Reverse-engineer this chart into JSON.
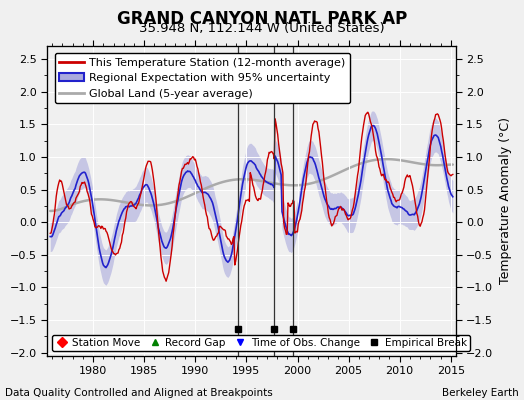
{
  "title": "GRAND CANYON NATL PARK AP",
  "subtitle": "35.948 N, 112.144 W (United States)",
  "ylabel": "Temperature Anomaly (°C)",
  "footer_left": "Data Quality Controlled and Aligned at Breakpoints",
  "footer_right": "Berkeley Earth",
  "ylim": [
    -2.05,
    2.7
  ],
  "xlim": [
    1975.5,
    2015.5
  ],
  "xticks": [
    1980,
    1985,
    1990,
    1995,
    2000,
    2005,
    2010,
    2015
  ],
  "yticks": [
    -2,
    -1.5,
    -1,
    -0.5,
    0,
    0.5,
    1,
    1.5,
    2,
    2.5
  ],
  "empirical_breaks": [
    1994.2,
    1997.7,
    1999.6
  ],
  "station_color": "#cc0000",
  "regional_color": "#2222cc",
  "regional_fill_color": "#aaaadd",
  "global_color": "#aaaaaa",
  "bg_color": "#f0f0f0",
  "plot_bg_color": "#f0f0f0",
  "grid_color": "#ffffff",
  "title_fontsize": 12,
  "subtitle_fontsize": 9.5,
  "tick_fontsize": 8,
  "legend_fontsize": 8,
  "footer_fontsize": 7.5
}
